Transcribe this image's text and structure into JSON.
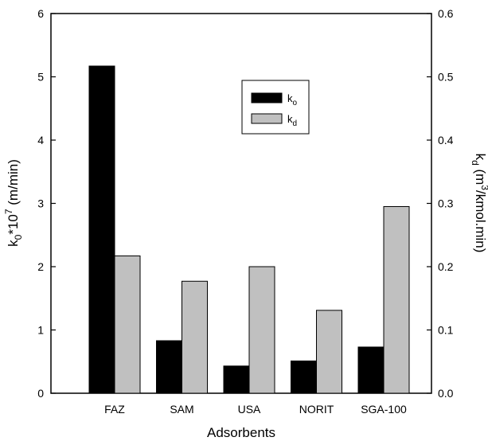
{
  "chart_data": {
    "type": "bar",
    "xlabel": "Adsorbents",
    "ylabel_left": {
      "base": "k",
      "sub": "0",
      "mid": "*10",
      "sup": "7",
      "unit": " (m/min)"
    },
    "ylabel_right": {
      "base": "k",
      "sub": "d",
      "pre": " (m",
      "sup": "3",
      "post": "/kmol.min)"
    },
    "categories": [
      "FAZ",
      "SAM",
      "USA",
      "NORIT",
      "SGA-100"
    ],
    "series": [
      {
        "name": "k",
        "sub": "o",
        "axis": "left",
        "color": "#000000",
        "values": [
          5.17,
          0.83,
          0.43,
          0.51,
          0.73
        ]
      },
      {
        "name": "k",
        "sub": "d",
        "axis": "right",
        "color": "#c0c0c0",
        "values": [
          0.217,
          0.177,
          0.2,
          0.131,
          0.295
        ]
      }
    ],
    "ylim_left": [
      0,
      6
    ],
    "ylim_right": [
      0,
      0.6
    ],
    "yticks_left": [
      "0",
      "1",
      "2",
      "3",
      "4",
      "5",
      "6"
    ],
    "yticks_right": [
      "0.0",
      "0.1",
      "0.2",
      "0.3",
      "0.4",
      "0.5",
      "0.6"
    ],
    "grid": false,
    "legend_position": "top-center"
  }
}
